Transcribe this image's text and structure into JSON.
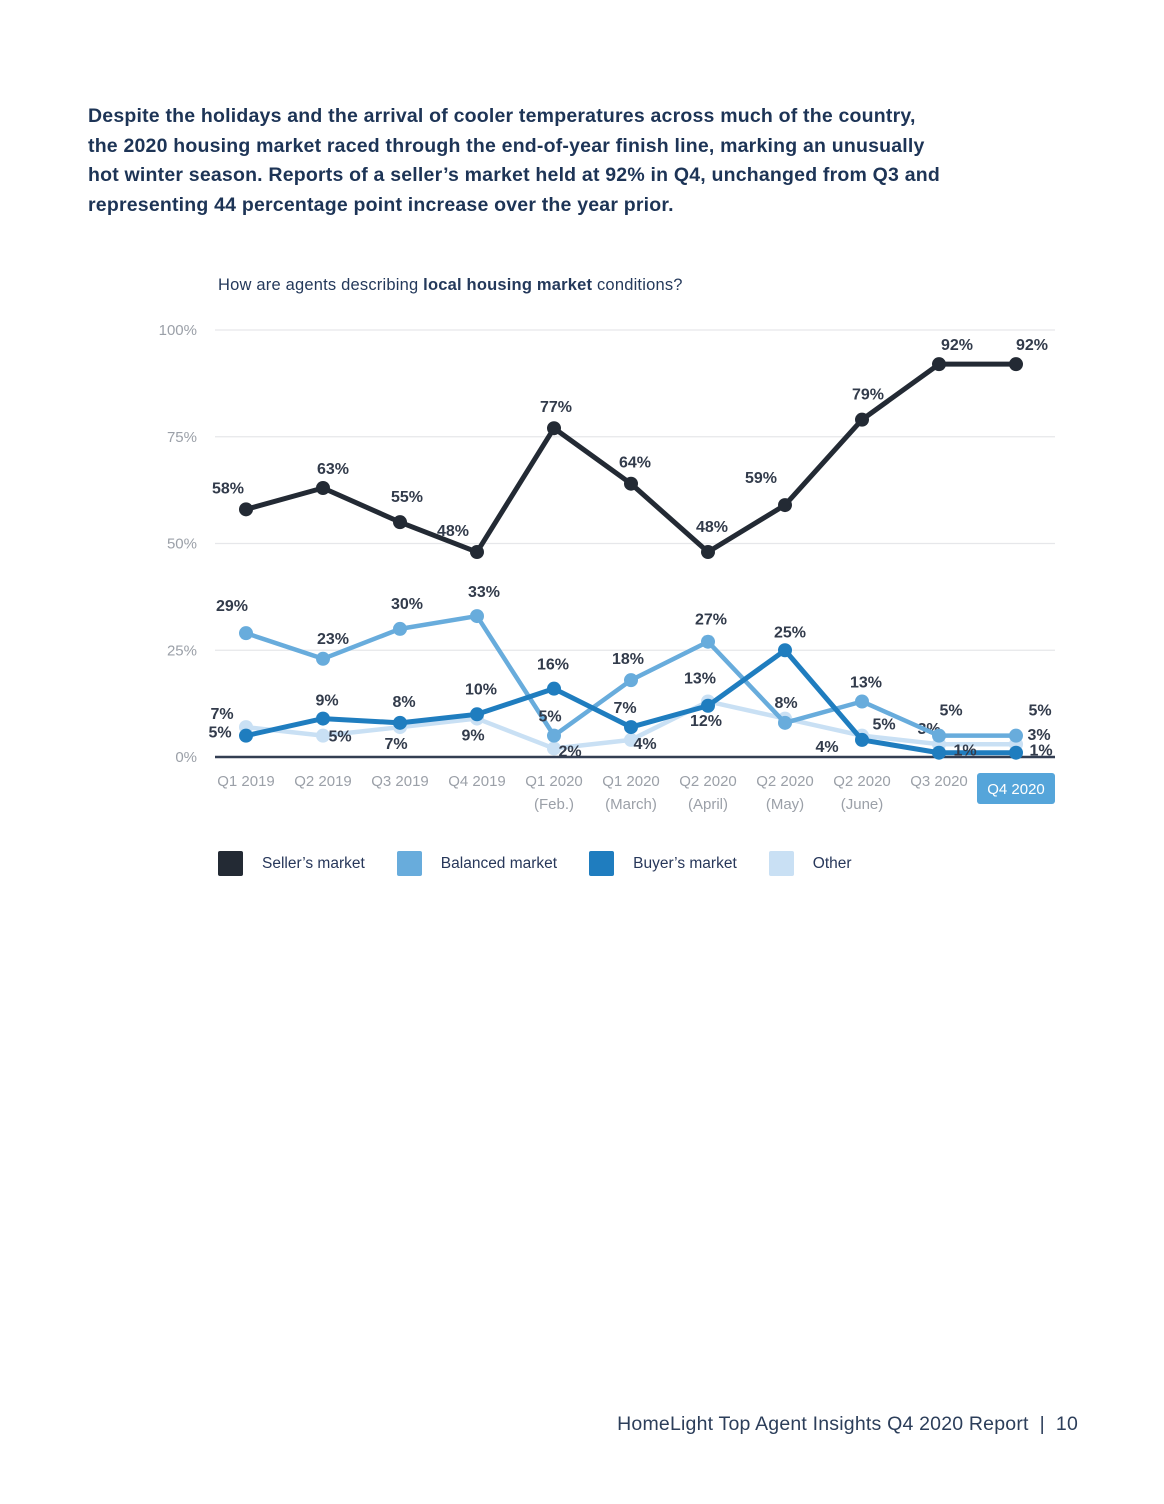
{
  "intro_paragraph": "Despite the holidays and the arrival of cooler temperatures across much of the country,\nthe 2020 housing market raced through the end-of-year finish line, marking an unusually\nhot winter season. Reports of a seller’s market held at 92% in Q4, unchanged from Q3 and\nrepresenting 44 percentage point increase over the year prior.",
  "chart_data": {
    "type": "line",
    "title": {
      "prefix": "How are agents describing ",
      "bold": "local housing market",
      "suffix": " conditions?"
    },
    "y_axis": {
      "range": [
        0,
        100
      ],
      "ticks": [
        {
          "label": "100%",
          "value": 100
        },
        {
          "label": "75%",
          "value": 75
        },
        {
          "label": "50%",
          "value": 50
        },
        {
          "label": "25%",
          "value": 25
        },
        {
          "label": "0%",
          "value": 0
        }
      ]
    },
    "grid": true,
    "highlight_color": "#55A5DA",
    "x_categories": [
      {
        "line1": "Q1 2019",
        "line2": ""
      },
      {
        "line1": "Q2 2019",
        "line2": ""
      },
      {
        "line1": "Q3 2019",
        "line2": ""
      },
      {
        "line1": "Q4 2019",
        "line2": ""
      },
      {
        "line1": "Q1 2020",
        "line2": "(Feb.)"
      },
      {
        "line1": "Q1 2020",
        "line2": "(March)"
      },
      {
        "line1": "Q2 2020",
        "line2": "(April)"
      },
      {
        "line1": "Q2 2020",
        "line2": "(May)"
      },
      {
        "line1": "Q2 2020",
        "line2": "(June)"
      },
      {
        "line1": "Q3 2020",
        "line2": ""
      },
      {
        "line1": "Q4 2020",
        "line2": "",
        "highlighted": true
      }
    ],
    "series": [
      {
        "name": "Other",
        "color": "#C9E0F4",
        "stroke_width": 4.5,
        "values": [
          7,
          5,
          7,
          9,
          2,
          4,
          13,
          9,
          5,
          3,
          3
        ],
        "labels": [
          "7%",
          "5%",
          "7%",
          "9%",
          "2%",
          "4%",
          "13%",
          "",
          "5%",
          "3%",
          "3%"
        ],
        "label_offsets": [
          [
            -24,
            -8
          ],
          [
            17,
            6
          ],
          [
            -4,
            22
          ],
          [
            -4,
            22
          ],
          [
            16,
            8
          ],
          [
            14,
            9
          ],
          [
            -8,
            -18
          ],
          [
            0,
            0
          ],
          [
            22,
            -6
          ],
          [
            -10,
            -10
          ],
          [
            23,
            -4
          ]
        ]
      },
      {
        "name": "Balanced market",
        "color": "#68ACDC",
        "stroke_width": 4.5,
        "values": [
          29,
          23,
          30,
          33,
          5,
          18,
          27,
          8,
          13,
          5,
          5
        ],
        "labels": [
          "29%",
          "23%",
          "30%",
          "33%",
          "5%",
          "18%",
          "27%",
          "8%",
          "13%",
          "5%",
          "5%"
        ],
        "label_offsets": [
          [
            -14,
            -22
          ],
          [
            10,
            -15
          ],
          [
            7,
            -20
          ],
          [
            7,
            -19
          ],
          [
            -4,
            -14
          ],
          [
            -3,
            -16
          ],
          [
            3,
            -17
          ],
          [
            1,
            -15
          ],
          [
            4,
            -14
          ],
          [
            12,
            -20
          ],
          [
            24,
            -20
          ]
        ]
      },
      {
        "name": "Buyer's market",
        "color": "#1F7DBF",
        "stroke_width": 5,
        "values": [
          5,
          9,
          8,
          10,
          16,
          7,
          12,
          25,
          4,
          1,
          1
        ],
        "labels": [
          "5%",
          "9%",
          "8%",
          "10%",
          "16%",
          "7%",
          "12%",
          "25%",
          "4%",
          "1%",
          "1%"
        ],
        "label_offsets": [
          [
            -26,
            2
          ],
          [
            4,
            -13
          ],
          [
            4,
            -16
          ],
          [
            4,
            -20
          ],
          [
            -1,
            -19
          ],
          [
            -6,
            -14
          ],
          [
            -2,
            20
          ],
          [
            5,
            -13
          ],
          [
            -35,
            12
          ],
          [
            26,
            3
          ],
          [
            25,
            3
          ]
        ]
      },
      {
        "name": "Seller's market",
        "color": "#232A34",
        "stroke_width": 5,
        "values": [
          58,
          63,
          55,
          48,
          77,
          64,
          48,
          59,
          79,
          92,
          92
        ],
        "labels": [
          "58%",
          "63%",
          "55%",
          "48%",
          "77%",
          "64%",
          "48%",
          "59%",
          "79%",
          "92%",
          "92%"
        ],
        "label_offsets": [
          [
            -18,
            -16
          ],
          [
            10,
            -14
          ],
          [
            7,
            -20
          ],
          [
            -24,
            -16
          ],
          [
            2,
            -16
          ],
          [
            4,
            -16
          ],
          [
            4,
            -20
          ],
          [
            -24,
            -22
          ],
          [
            6,
            -20
          ],
          [
            18,
            -14
          ],
          [
            16,
            -14
          ]
        ]
      }
    ]
  },
  "legend": {
    "items": [
      {
        "label": "Seller’s market",
        "color": "#232A34"
      },
      {
        "label": "Balanced market",
        "color": "#68ACDC"
      },
      {
        "label": "Buyer’s market",
        "color": "#1F7DBF"
      },
      {
        "label": "Other",
        "color": "#C9E0F4"
      }
    ]
  },
  "footer": {
    "text": "HomeLight Top Agent Insights Q4 2020 Report",
    "separator": "|",
    "page_number": "10"
  }
}
